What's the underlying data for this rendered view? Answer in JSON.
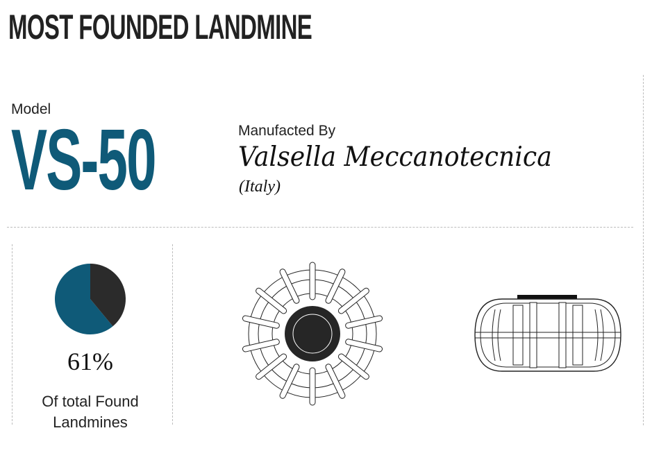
{
  "title": "MOST FOUNDED LANDMINE",
  "model": {
    "label": "Model",
    "value": "VS-50"
  },
  "manufacturer": {
    "label": "Manufacted By",
    "name": "Valsella Meccanotecnica",
    "country": "(Italy)"
  },
  "chart_data": {
    "type": "pie",
    "values": [
      61,
      39
    ],
    "data_label": "61%",
    "caption": "Of total Found Landmines",
    "colors": [
      "#0f5a78",
      "#2b2b2b"
    ]
  },
  "illustrations": {
    "top_view": "landmine-top-view-icon",
    "side_view": "landmine-side-view-icon"
  }
}
